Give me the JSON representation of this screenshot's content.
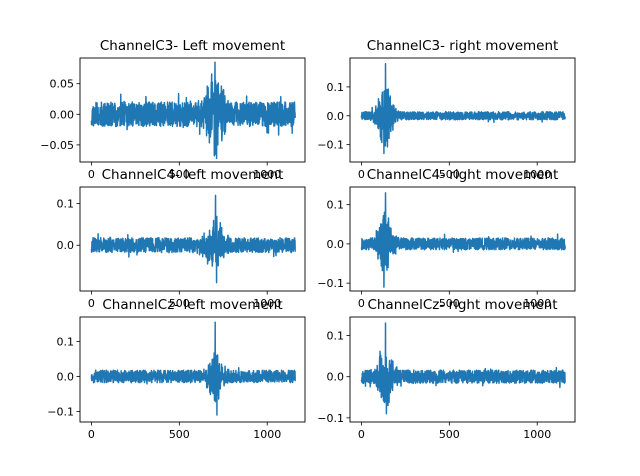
{
  "chart_data": [
    {
      "type": "line",
      "title": "ChannelC3- Left movement",
      "xlabel": "",
      "ylabel": "",
      "xlim": [
        -65,
        1215
      ],
      "ylim": [
        -0.078,
        0.092
      ],
      "xticks": [
        0,
        500,
        1000
      ],
      "xtick_labels": [
        "0",
        "500",
        "1000"
      ],
      "yticks": [
        -0.05,
        0,
        0.05
      ],
      "ytick_labels": [
        "−0.05",
        "0.00",
        "0.05"
      ],
      "grid": false,
      "color": "#1f77b4",
      "n_samples": 1160,
      "signal": {
        "noise_amplitude": 0.02,
        "seed": 11,
        "burst_center": 700,
        "burst_width": 55,
        "burst_amplitude": 0.055,
        "peak": {
          "x": 703,
          "y": 0.085
        },
        "trough": {
          "x": 712,
          "y": -0.072
        }
      }
    },
    {
      "type": "line",
      "title": "ChannelC3- right movement",
      "xlabel": "",
      "ylabel": "",
      "xlim": [
        -65,
        1215
      ],
      "ylim": [
        -0.16,
        0.2
      ],
      "xticks": [
        0,
        500,
        1000
      ],
      "xtick_labels": [
        "0",
        "500",
        "1000"
      ],
      "yticks": [
        -0.1,
        0,
        0.1
      ],
      "ytick_labels": [
        "−0.1",
        "0.0",
        "0.1"
      ],
      "grid": false,
      "color": "#1f77b4",
      "n_samples": 1160,
      "signal": {
        "noise_amplitude": 0.014,
        "seed": 23,
        "burst_center": 135,
        "burst_width": 45,
        "burst_amplitude": 0.11,
        "peak": {
          "x": 137,
          "y": 0.18
        },
        "trough": {
          "x": 128,
          "y": -0.13
        }
      }
    },
    {
      "type": "line",
      "title": "ChannelC4- left movement",
      "xlabel": "",
      "ylabel": "",
      "xlim": [
        -65,
        1215
      ],
      "ylim": [
        -0.11,
        0.14
      ],
      "xticks": [
        0,
        500,
        1000
      ],
      "xtick_labels": [
        "0",
        "500",
        "1000"
      ],
      "yticks": [
        0,
        0.1
      ],
      "ytick_labels": [
        "0.0",
        "0.1"
      ],
      "grid": false,
      "color": "#1f77b4",
      "n_samples": 1160,
      "signal": {
        "noise_amplitude": 0.018,
        "seed": 37,
        "burst_center": 700,
        "burst_width": 55,
        "burst_amplitude": 0.06,
        "peak": {
          "x": 706,
          "y": 0.12
        },
        "trough": {
          "x": 712,
          "y": -0.09
        }
      }
    },
    {
      "type": "line",
      "title": "ChannelC4- right movement",
      "xlabel": "",
      "ylabel": "",
      "xlim": [
        -65,
        1215
      ],
      "ylim": [
        -0.12,
        0.145
      ],
      "xticks": [
        0,
        500,
        1000
      ],
      "xtick_labels": [
        "0",
        "500",
        "1000"
      ],
      "yticks": [
        -0.1,
        0,
        0.1
      ],
      "ytick_labels": [
        "−0.1",
        "0.0",
        "0.1"
      ],
      "grid": false,
      "color": "#1f77b4",
      "n_samples": 1160,
      "signal": {
        "noise_amplitude": 0.015,
        "seed": 41,
        "burst_center": 135,
        "burst_width": 45,
        "burst_amplitude": 0.075,
        "peak": {
          "x": 137,
          "y": 0.13
        },
        "trough": {
          "x": 128,
          "y": -0.11
        }
      }
    },
    {
      "type": "line",
      "title": "ChannelCz- left movement",
      "xlabel": "",
      "ylabel": "",
      "xlim": [
        -65,
        1215
      ],
      "ylim": [
        -0.13,
        0.17
      ],
      "xticks": [
        0,
        500,
        1000
      ],
      "xtick_labels": [
        "0",
        "500",
        "1000"
      ],
      "yticks": [
        -0.1,
        0,
        0.1
      ],
      "ytick_labels": [
        "−0.1",
        "0.0",
        "0.1"
      ],
      "grid": false,
      "color": "#1f77b4",
      "n_samples": 1160,
      "signal": {
        "noise_amplitude": 0.018,
        "seed": 53,
        "burst_center": 705,
        "burst_width": 45,
        "burst_amplitude": 0.065,
        "peak": {
          "x": 704,
          "y": 0.155
        },
        "trough": {
          "x": 714,
          "y": -0.11
        }
      }
    },
    {
      "type": "line",
      "title": "ChannelCz- right movement",
      "xlabel": "",
      "ylabel": "",
      "xlim": [
        -65,
        1215
      ],
      "ylim": [
        -0.11,
        0.145
      ],
      "xticks": [
        0,
        500,
        1000
      ],
      "xtick_labels": [
        "0",
        "500",
        "1000"
      ],
      "yticks": [
        -0.1,
        0,
        0.1
      ],
      "ytick_labels": [
        "−0.1",
        "0.0",
        "0.1"
      ],
      "grid": false,
      "color": "#1f77b4",
      "n_samples": 1160,
      "signal": {
        "noise_amplitude": 0.016,
        "seed": 67,
        "burst_center": 135,
        "burst_width": 45,
        "burst_amplitude": 0.075,
        "peak": {
          "x": 137,
          "y": 0.13
        },
        "trough": {
          "x": 142,
          "y": -0.09
        }
      }
    }
  ]
}
